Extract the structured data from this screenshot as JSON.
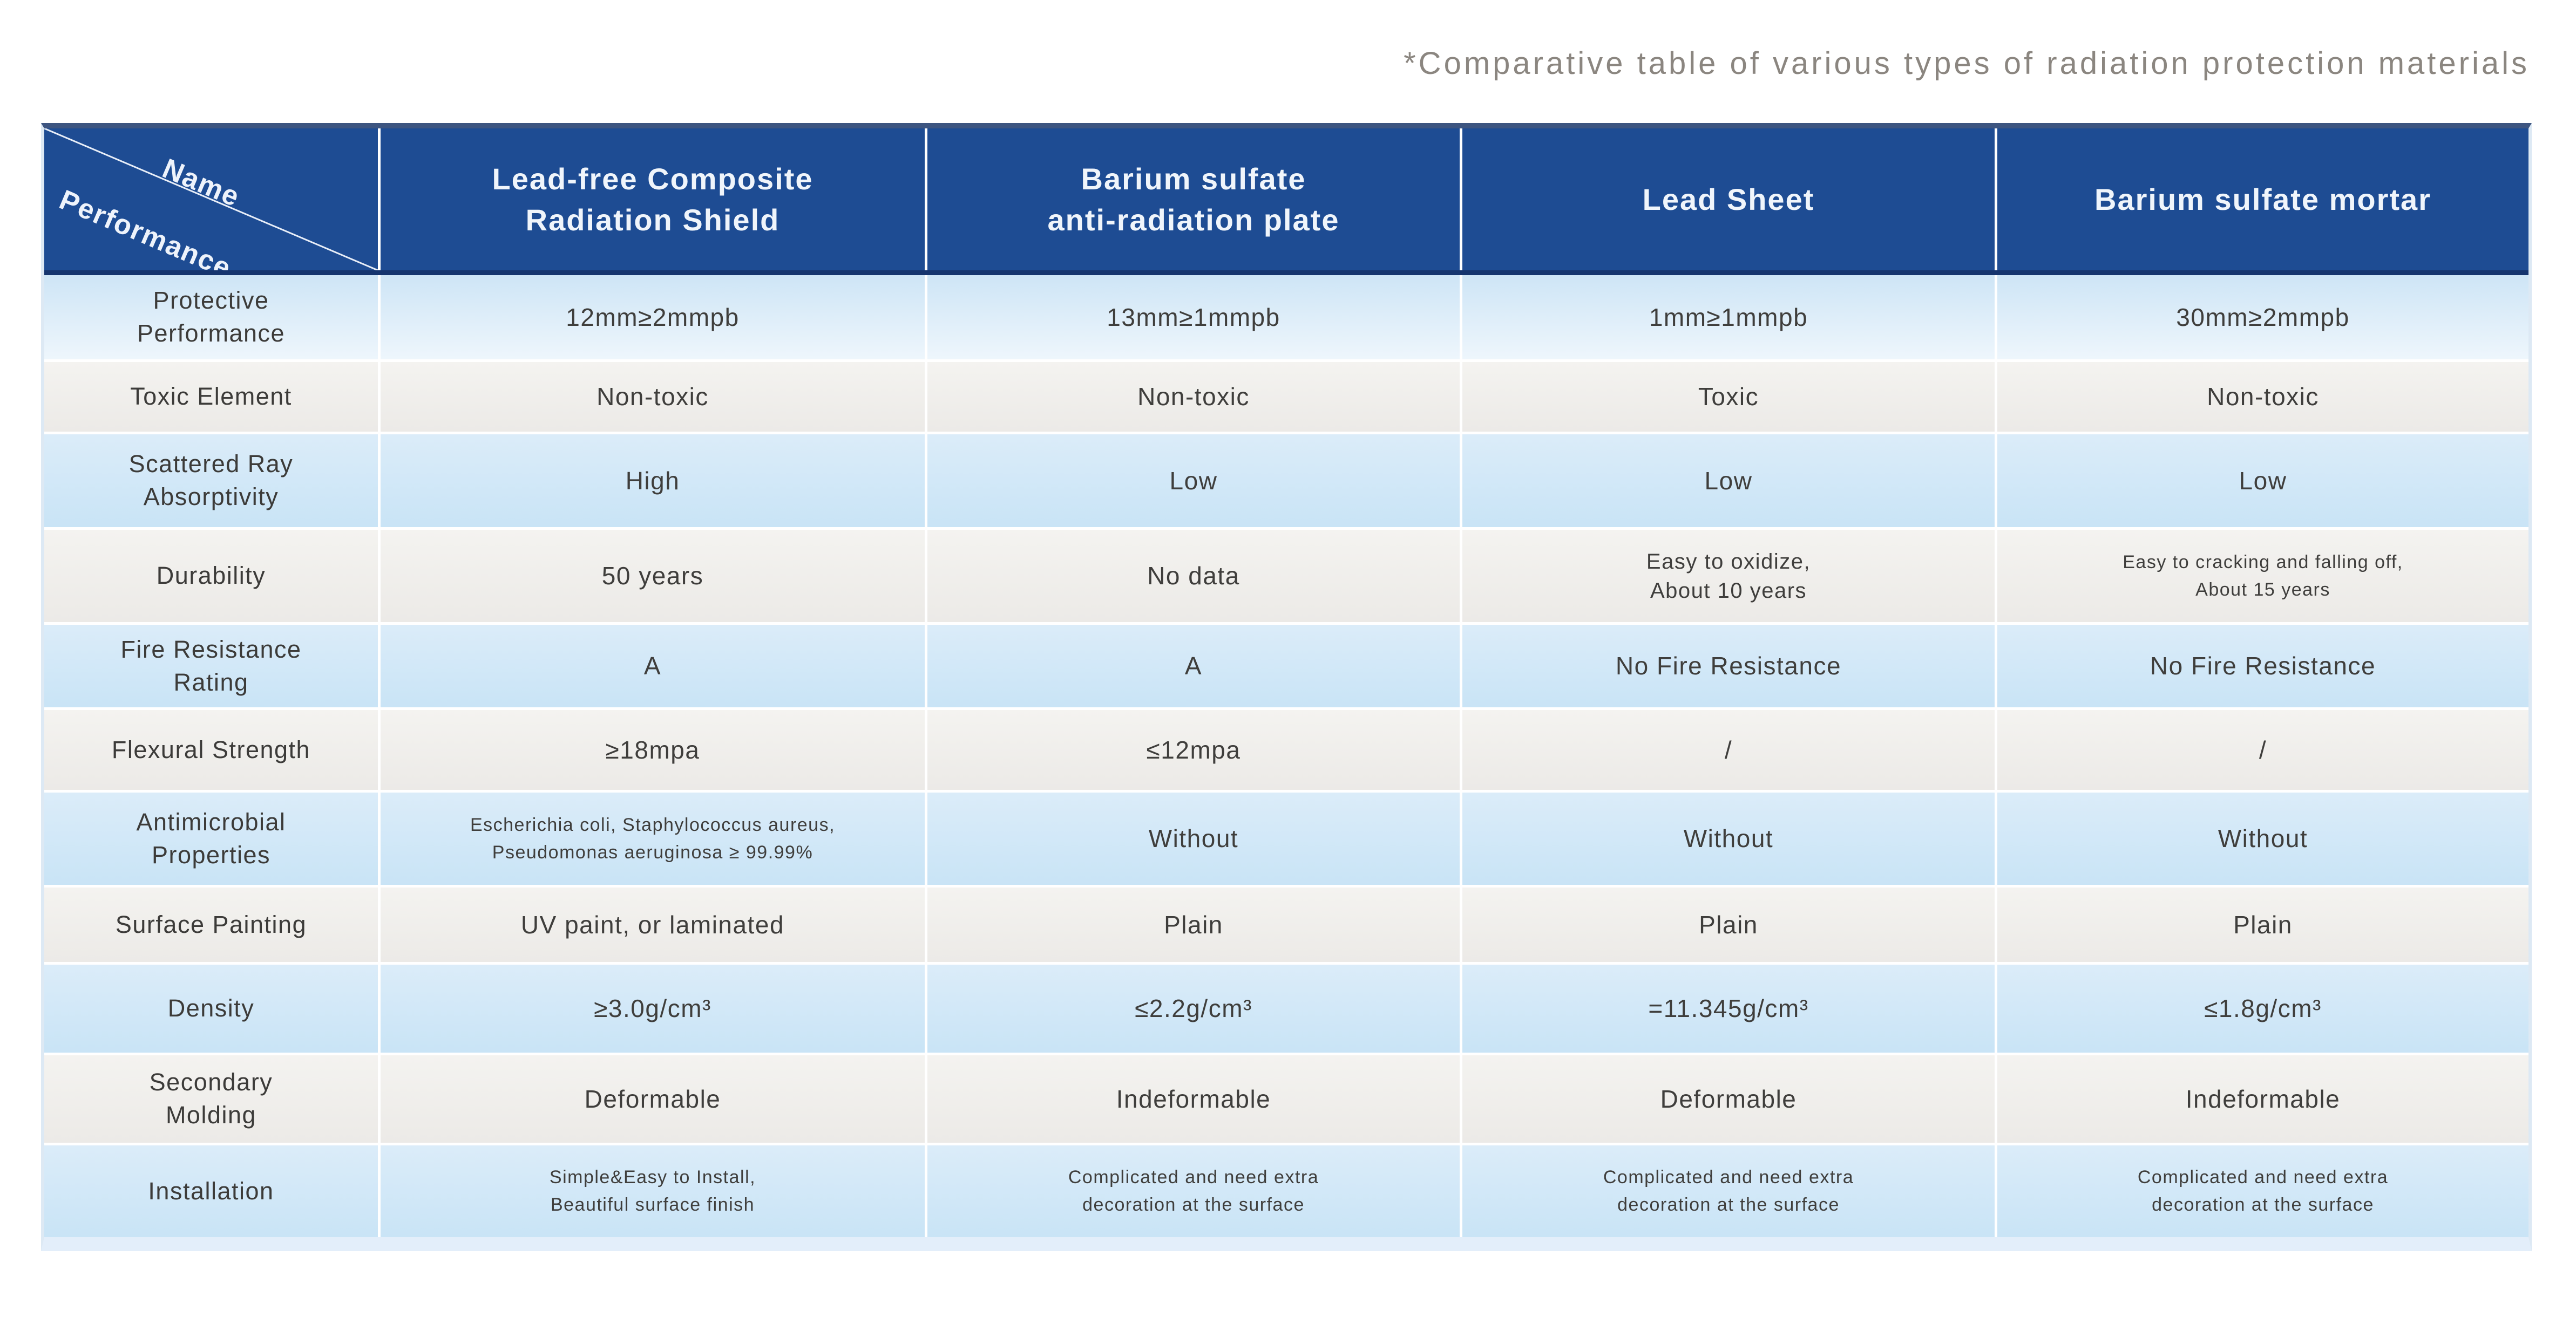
{
  "title": "*Comparative table of various types of radiation protection materials",
  "table": {
    "corner": {
      "name_label": "Name",
      "performance_label": "Performance"
    },
    "columns": [
      "Lead-free Composite\nRadiation Shield",
      "Barium sulfate\nanti-radiation plate",
      "Lead Sheet",
      "Barium sulfate mortar"
    ],
    "rows": [
      {
        "label": "Protective\nPerformance",
        "values": [
          "12mm≥2mmpb",
          "13mm≥1mmpb",
          "1mm≥1mmpb",
          "30mm≥2mmpb"
        ]
      },
      {
        "label": "Toxic Element",
        "values": [
          "Non-toxic",
          "Non-toxic",
          "Toxic",
          "Non-toxic"
        ]
      },
      {
        "label": "Scattered Ray\nAbsorptivity",
        "values": [
          "High",
          "Low",
          "Low",
          "Low"
        ]
      },
      {
        "label": "Durability",
        "values": [
          "50 years",
          "No data",
          "Easy to oxidize,\nAbout 10 years",
          "Easy to cracking and falling off,\nAbout 15 years"
        ]
      },
      {
        "label": "Fire Resistance\nRating",
        "values": [
          "A",
          "A",
          "No Fire Resistance",
          "No Fire Resistance"
        ]
      },
      {
        "label": "Flexural Strength",
        "values": [
          "≥18mpa",
          "≤12mpa",
          "/",
          "/"
        ]
      },
      {
        "label": "Antimicrobial\nProperties",
        "values": [
          "Escherichia coli, Staphylococcus aureus,\nPseudomonas aeruginosa ≥ 99.99%",
          "Without",
          "Without",
          "Without"
        ]
      },
      {
        "label": "Surface Painting",
        "values": [
          "UV paint, or laminated",
          "Plain",
          "Plain",
          "Plain"
        ]
      },
      {
        "label": "Density",
        "values": [
          "≥3.0g/cm³",
          "≤2.2g/cm³",
          "=11.345g/cm³",
          "≤1.8g/cm³"
        ]
      },
      {
        "label": "Secondary\nMolding",
        "values": [
          "Deformable",
          "Indeformable",
          "Deformable",
          "Indeformable"
        ]
      },
      {
        "label": "Installation",
        "values": [
          "Simple&Easy to Install,\nBeautiful surface finish",
          "Complicated and need extra\ndecoration at the surface",
          "Complicated and need extra\ndecoration at the surface",
          "Complicated and need extra\ndecoration at the surface"
        ]
      }
    ],
    "colors": {
      "header_blue": "#1e4c93",
      "header_text": "#f0f5fb",
      "light_blue_row": "#cde6f6",
      "white_row": "#f2f1ee",
      "body_text": "#3f3e3c",
      "caption_text": "#8b8680"
    }
  }
}
